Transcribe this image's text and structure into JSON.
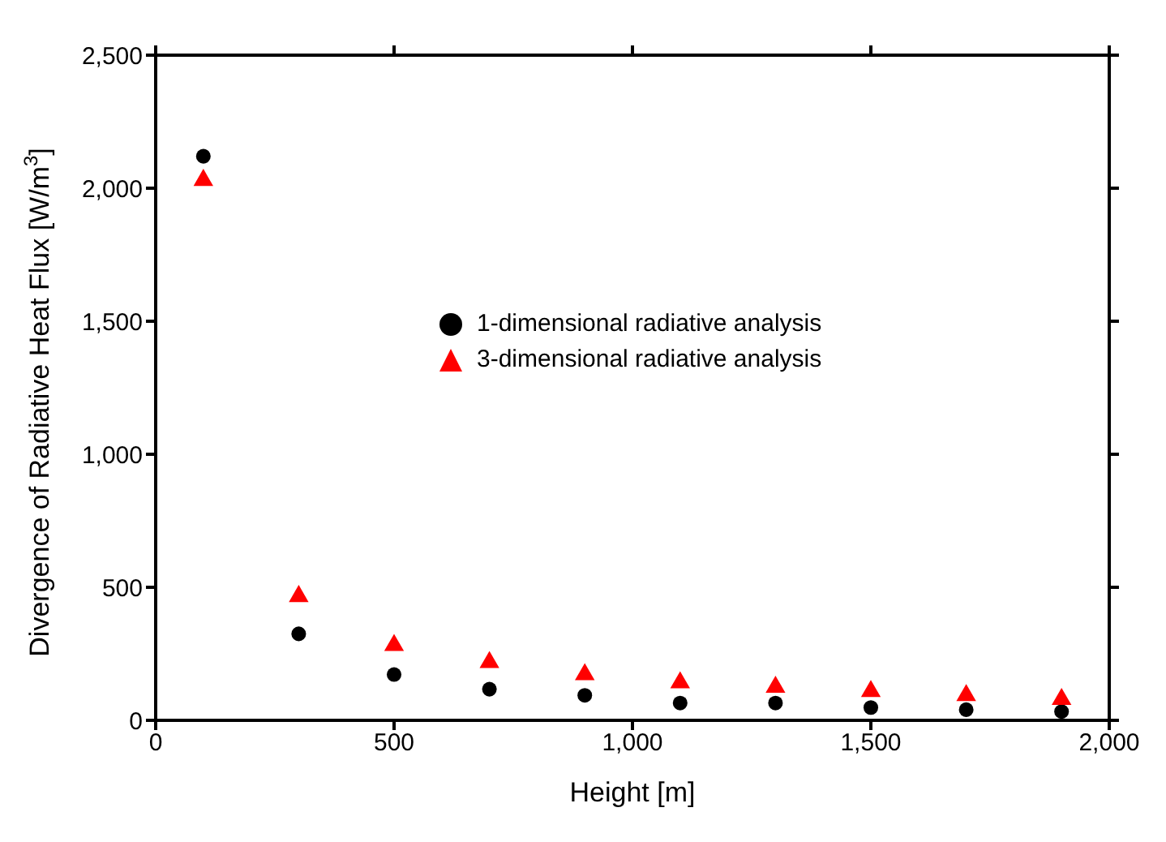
{
  "chart_data": {
    "type": "scatter",
    "xlabel": "Height [m]",
    "ylabel": "Divergence of Radiative Heat Flux [W/m$^{3}$]",
    "x": [
      100,
      300,
      500,
      700,
      900,
      1100,
      1300,
      1500,
      1700,
      1900
    ],
    "series": [
      {
        "name": "1-dimensional radiative analysis",
        "color": "#000000",
        "marker": "circle",
        "values": [
          2120,
          325,
          172,
          117,
          94,
          65,
          65,
          48,
          40,
          33
        ]
      },
      {
        "name": "3-dimensional radiative analysis",
        "color": "#ff0000",
        "marker": "triangle",
        "values": [
          2030,
          466,
          282,
          218,
          172,
          142,
          125,
          109,
          94,
          79
        ]
      }
    ],
    "xlim": [
      0,
      2000
    ],
    "xticks": [
      0,
      500,
      {
        "value": 1000,
        "label": "1,000"
      },
      {
        "value": 1500,
        "label": "1,500"
      },
      {
        "value": 2000,
        "label": "2,000"
      }
    ],
    "ylim": [
      0,
      2500
    ],
    "yticks": [
      0,
      500,
      {
        "value": 1000,
        "label": "1,000"
      },
      {
        "value": 1500,
        "label": "1,500"
      },
      {
        "value": 2000,
        "label": "2,000"
      },
      {
        "value": 2500,
        "label": "2,500"
      }
    ],
    "grid": false,
    "legend": "right"
  }
}
